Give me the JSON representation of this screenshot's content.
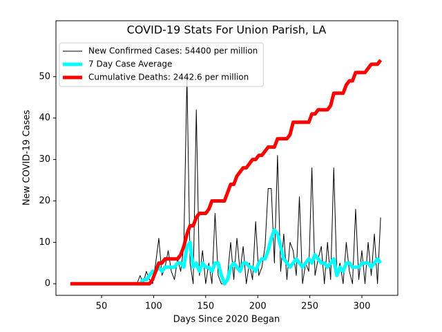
{
  "chart_data": {
    "type": "line",
    "title": "COVID-19 Stats For Union Parish, LA",
    "x_label": "Days Since 2020 Began",
    "y_label": "New COVID-19 Cases",
    "x": [
      20,
      30,
      40,
      50,
      60,
      70,
      80,
      84,
      87,
      90,
      93,
      96,
      99,
      102,
      105,
      108,
      111,
      114,
      117,
      120,
      123,
      126,
      129,
      132,
      135,
      138,
      141,
      144,
      147,
      150,
      153,
      156,
      159,
      162,
      165,
      168,
      171,
      174,
      177,
      180,
      183,
      186,
      189,
      192,
      195,
      198,
      201,
      204,
      207,
      210,
      213,
      216,
      219,
      222,
      225,
      228,
      231,
      234,
      237,
      240,
      243,
      246,
      249,
      252,
      255,
      258,
      261,
      264,
      267,
      270,
      273,
      276,
      279,
      282,
      285,
      288,
      291,
      294,
      297,
      300,
      303,
      306,
      309,
      312,
      315,
      318
    ],
    "series": [
      {
        "name": "New Confirmed Cases: 54400 per million",
        "color": "#000000",
        "linewidth": 1,
        "values": [
          null,
          null,
          null,
          null,
          null,
          null,
          null,
          0,
          2,
          0,
          3,
          1,
          0,
          5,
          11,
          2,
          4,
          8,
          3,
          1,
          6,
          3,
          9,
          50,
          5,
          0,
          42,
          2,
          8,
          0,
          5,
          0,
          17,
          2,
          0,
          0,
          2,
          10,
          1,
          11,
          3,
          9,
          0,
          5,
          1,
          15,
          2,
          4,
          9,
          23,
          23,
          5,
          31,
          3,
          12,
          1,
          10,
          8,
          2,
          21,
          0,
          5,
          3,
          28,
          2,
          6,
          9,
          0,
          10,
          1,
          28,
          2,
          5,
          0,
          10,
          3,
          0,
          18,
          1,
          8,
          0,
          10,
          2,
          12,
          0,
          16
        ]
      },
      {
        "name": "7 Day Case Average",
        "color": "#00ffff",
        "linewidth": 5,
        "values": [
          null,
          null,
          null,
          null,
          null,
          null,
          null,
          null,
          0,
          1,
          1,
          2,
          3,
          3,
          4,
          3,
          4,
          4,
          4,
          4,
          5,
          5,
          4,
          9,
          10,
          4,
          5,
          3,
          5,
          4,
          4,
          3,
          5,
          5,
          2,
          0,
          1,
          4,
          5,
          4,
          3,
          5,
          5,
          4,
          4,
          3,
          5,
          6,
          6,
          8,
          11,
          13,
          12,
          9,
          6,
          5,
          4,
          5,
          6,
          5,
          4,
          5,
          6,
          5,
          7,
          6,
          5,
          5,
          4,
          5,
          6,
          2,
          4,
          3,
          5,
          5,
          4,
          4,
          4,
          5,
          5,
          5,
          4,
          5,
          6,
          5
        ]
      },
      {
        "name": "Cumulative Deaths: 2442.6 per million",
        "color": "#ff0000",
        "linewidth": 5,
        "values": [
          0,
          0,
          0,
          0,
          0,
          0,
          0,
          0,
          0,
          0,
          0,
          0,
          1,
          3,
          5,
          5,
          6,
          6,
          6,
          6,
          6,
          7,
          9,
          12,
          14,
          14,
          16,
          17,
          17,
          17,
          18,
          20,
          20,
          20,
          20,
          20,
          22,
          24,
          24,
          26,
          27,
          28,
          28,
          29,
          30,
          30,
          31,
          31,
          32,
          33,
          33,
          33,
          35,
          35,
          35,
          35,
          36,
          39,
          39,
          39,
          39,
          39,
          39,
          41,
          41,
          42,
          42,
          42,
          42,
          43,
          46,
          46,
          46,
          46,
          48,
          49,
          49,
          51,
          51,
          51,
          51,
          52,
          53,
          53,
          53,
          54
        ]
      }
    ],
    "xlim": [
      6.2,
      334.5
    ],
    "ylim": [
      -2.8,
      63.5
    ],
    "xticks": [
      50,
      100,
      150,
      200,
      250,
      300
    ],
    "yticks": [
      0,
      10,
      20,
      30,
      40,
      50
    ],
    "legend": "upper left"
  }
}
